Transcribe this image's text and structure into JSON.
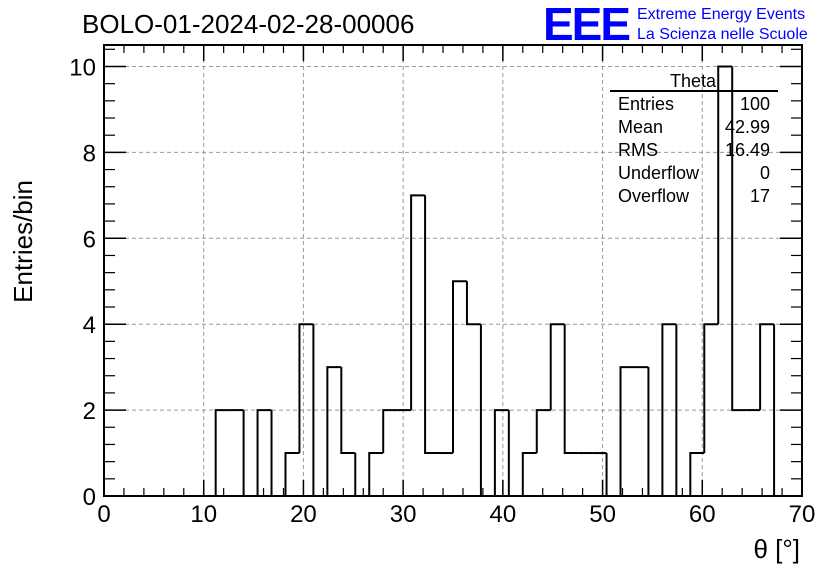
{
  "chart_data": {
    "type": "bar",
    "title": "BOLO-01-2024-02-28-00006",
    "xlabel": "θ [°]",
    "ylabel": "Entries/bin",
    "xlim": [
      0,
      70
    ],
    "ylim": [
      0,
      10.5
    ],
    "bin_width": 1.4,
    "x_ticks": [
      0,
      10,
      20,
      30,
      40,
      50,
      60,
      70
    ],
    "y_ticks": [
      0,
      2,
      4,
      6,
      8,
      10
    ],
    "grid": true,
    "series": [
      {
        "values": [
          0,
          0,
          0,
          0,
          0,
          0,
          0,
          0,
          2,
          2,
          0,
          2,
          0,
          1,
          4,
          0,
          3,
          1,
          0,
          1,
          2,
          2,
          7,
          1,
          1,
          5,
          4,
          0,
          2,
          0,
          1,
          2,
          4,
          1,
          1,
          1,
          0,
          3,
          3,
          0,
          4,
          0,
          1,
          4,
          10,
          2,
          2,
          4,
          0,
          0
        ]
      }
    ],
    "stats_box": {
      "title": "Theta",
      "rows": [
        {
          "label": "Entries",
          "value": "100"
        },
        {
          "label": "Mean",
          "value": "42.99"
        },
        {
          "label": "RMS",
          "value": "16.49"
        },
        {
          "label": "Underflow",
          "value": "0"
        },
        {
          "label": "Overflow",
          "value": "17"
        }
      ]
    }
  },
  "logo": {
    "mark": "EEE",
    "line1": "Extreme Energy Events",
    "line2": "La Scienza nelle Scuole",
    "color": "#0000ff"
  },
  "colors": {
    "line": "#000000",
    "grid": "#9a9a9a",
    "logo": "#0000ff"
  }
}
